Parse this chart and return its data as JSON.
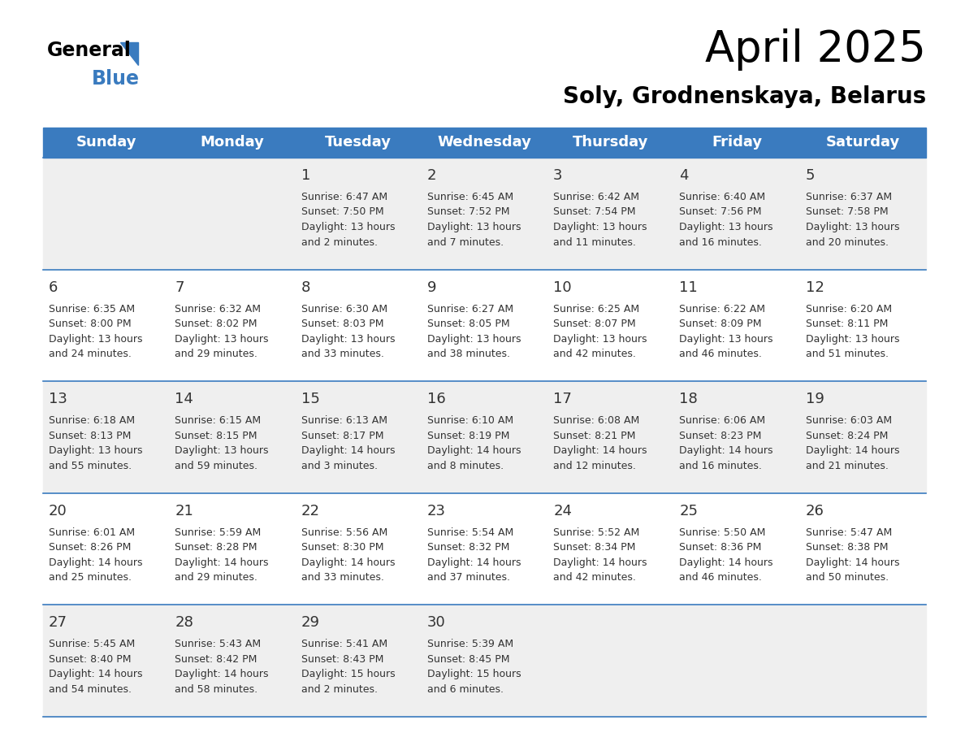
{
  "title": "April 2025",
  "subtitle": "Soly, Grodnenskaya, Belarus",
  "header_bg": "#3a7bbf",
  "header_text": "#ffffff",
  "row_bg_odd": "#efefef",
  "row_bg_even": "#ffffff",
  "separator_color": "#3a7bbf",
  "text_color": "#333333",
  "day_headers": [
    "Sunday",
    "Monday",
    "Tuesday",
    "Wednesday",
    "Thursday",
    "Friday",
    "Saturday"
  ],
  "weeks": [
    [
      {
        "day": "",
        "info": ""
      },
      {
        "day": "",
        "info": ""
      },
      {
        "day": "1",
        "info": "Sunrise: 6:47 AM\nSunset: 7:50 PM\nDaylight: 13 hours\nand 2 minutes."
      },
      {
        "day": "2",
        "info": "Sunrise: 6:45 AM\nSunset: 7:52 PM\nDaylight: 13 hours\nand 7 minutes."
      },
      {
        "day": "3",
        "info": "Sunrise: 6:42 AM\nSunset: 7:54 PM\nDaylight: 13 hours\nand 11 minutes."
      },
      {
        "day": "4",
        "info": "Sunrise: 6:40 AM\nSunset: 7:56 PM\nDaylight: 13 hours\nand 16 minutes."
      },
      {
        "day": "5",
        "info": "Sunrise: 6:37 AM\nSunset: 7:58 PM\nDaylight: 13 hours\nand 20 minutes."
      }
    ],
    [
      {
        "day": "6",
        "info": "Sunrise: 6:35 AM\nSunset: 8:00 PM\nDaylight: 13 hours\nand 24 minutes."
      },
      {
        "day": "7",
        "info": "Sunrise: 6:32 AM\nSunset: 8:02 PM\nDaylight: 13 hours\nand 29 minutes."
      },
      {
        "day": "8",
        "info": "Sunrise: 6:30 AM\nSunset: 8:03 PM\nDaylight: 13 hours\nand 33 minutes."
      },
      {
        "day": "9",
        "info": "Sunrise: 6:27 AM\nSunset: 8:05 PM\nDaylight: 13 hours\nand 38 minutes."
      },
      {
        "day": "10",
        "info": "Sunrise: 6:25 AM\nSunset: 8:07 PM\nDaylight: 13 hours\nand 42 minutes."
      },
      {
        "day": "11",
        "info": "Sunrise: 6:22 AM\nSunset: 8:09 PM\nDaylight: 13 hours\nand 46 minutes."
      },
      {
        "day": "12",
        "info": "Sunrise: 6:20 AM\nSunset: 8:11 PM\nDaylight: 13 hours\nand 51 minutes."
      }
    ],
    [
      {
        "day": "13",
        "info": "Sunrise: 6:18 AM\nSunset: 8:13 PM\nDaylight: 13 hours\nand 55 minutes."
      },
      {
        "day": "14",
        "info": "Sunrise: 6:15 AM\nSunset: 8:15 PM\nDaylight: 13 hours\nand 59 minutes."
      },
      {
        "day": "15",
        "info": "Sunrise: 6:13 AM\nSunset: 8:17 PM\nDaylight: 14 hours\nand 3 minutes."
      },
      {
        "day": "16",
        "info": "Sunrise: 6:10 AM\nSunset: 8:19 PM\nDaylight: 14 hours\nand 8 minutes."
      },
      {
        "day": "17",
        "info": "Sunrise: 6:08 AM\nSunset: 8:21 PM\nDaylight: 14 hours\nand 12 minutes."
      },
      {
        "day": "18",
        "info": "Sunrise: 6:06 AM\nSunset: 8:23 PM\nDaylight: 14 hours\nand 16 minutes."
      },
      {
        "day": "19",
        "info": "Sunrise: 6:03 AM\nSunset: 8:24 PM\nDaylight: 14 hours\nand 21 minutes."
      }
    ],
    [
      {
        "day": "20",
        "info": "Sunrise: 6:01 AM\nSunset: 8:26 PM\nDaylight: 14 hours\nand 25 minutes."
      },
      {
        "day": "21",
        "info": "Sunrise: 5:59 AM\nSunset: 8:28 PM\nDaylight: 14 hours\nand 29 minutes."
      },
      {
        "day": "22",
        "info": "Sunrise: 5:56 AM\nSunset: 8:30 PM\nDaylight: 14 hours\nand 33 minutes."
      },
      {
        "day": "23",
        "info": "Sunrise: 5:54 AM\nSunset: 8:32 PM\nDaylight: 14 hours\nand 37 minutes."
      },
      {
        "day": "24",
        "info": "Sunrise: 5:52 AM\nSunset: 8:34 PM\nDaylight: 14 hours\nand 42 minutes."
      },
      {
        "day": "25",
        "info": "Sunrise: 5:50 AM\nSunset: 8:36 PM\nDaylight: 14 hours\nand 46 minutes."
      },
      {
        "day": "26",
        "info": "Sunrise: 5:47 AM\nSunset: 8:38 PM\nDaylight: 14 hours\nand 50 minutes."
      }
    ],
    [
      {
        "day": "27",
        "info": "Sunrise: 5:45 AM\nSunset: 8:40 PM\nDaylight: 14 hours\nand 54 minutes."
      },
      {
        "day": "28",
        "info": "Sunrise: 5:43 AM\nSunset: 8:42 PM\nDaylight: 14 hours\nand 58 minutes."
      },
      {
        "day": "29",
        "info": "Sunrise: 5:41 AM\nSunset: 8:43 PM\nDaylight: 15 hours\nand 2 minutes."
      },
      {
        "day": "30",
        "info": "Sunrise: 5:39 AM\nSunset: 8:45 PM\nDaylight: 15 hours\nand 6 minutes."
      },
      {
        "day": "",
        "info": ""
      },
      {
        "day": "",
        "info": ""
      },
      {
        "day": "",
        "info": ""
      }
    ]
  ],
  "logo_general_fontsize": 17,
  "logo_blue_fontsize": 17,
  "title_fontsize": 38,
  "subtitle_fontsize": 20,
  "header_fontsize": 13,
  "day_num_fontsize": 13,
  "info_fontsize": 9
}
